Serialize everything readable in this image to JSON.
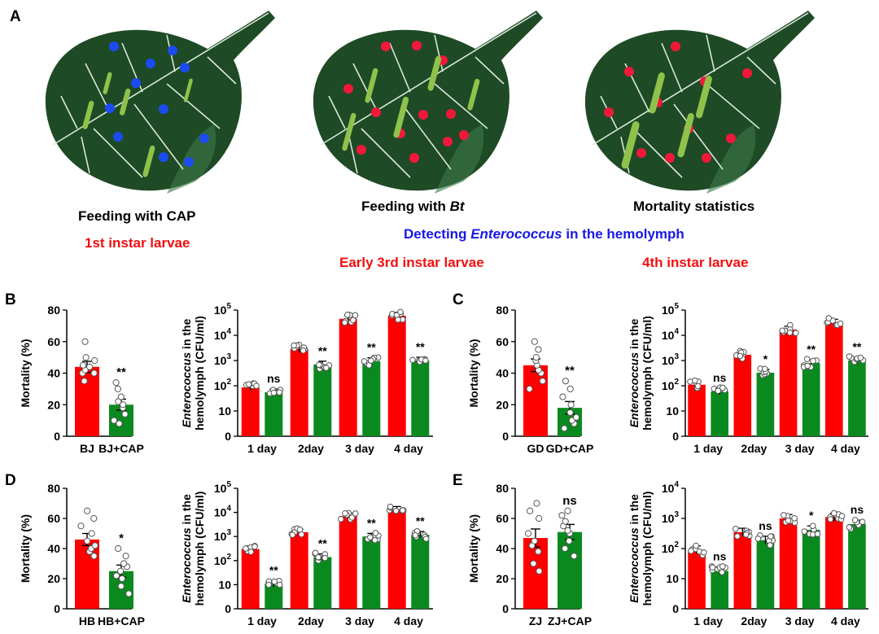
{
  "panel_labels": {
    "a": "A",
    "b": "B",
    "c": "C",
    "d": "D",
    "e": "E"
  },
  "schematic": {
    "step1": "Feeding with CAP",
    "step1_stage": "1st instar larvae",
    "step2_prefix": "Feeding with ",
    "step2_agent": "Bt",
    "step3": "Mortality statistics",
    "detect_prefix": "Detecting ",
    "detect_organism": "Enterococcus",
    "detect_suffix": " in the hemolymph",
    "step2_stage": "Early 3rd instar larvae",
    "step3_stage": "4th instar larvae",
    "dot_colors": {
      "cap": "#1a4cf2",
      "bt": "#f2183a"
    },
    "leaf_color": "#1e4a26",
    "larva_color": "#8fc24a"
  },
  "colors": {
    "control": "#ff0000",
    "cap": "#0a8a1e"
  },
  "chart_data": [
    {
      "panel": "B",
      "type": "bar",
      "ylabel": "Mortality (%)",
      "ylim": [
        0,
        80
      ],
      "yticks": [
        0,
        20,
        40,
        60,
        80
      ],
      "categories": [
        "BJ",
        "BJ+CAP"
      ],
      "values": [
        44,
        20
      ],
      "errors": [
        3.5,
        3.5
      ],
      "points": [
        [
          35,
          40,
          40,
          42,
          44,
          45,
          48,
          50,
          60
        ],
        [
          8,
          10,
          14,
          18,
          20,
          22,
          25,
          30,
          34
        ]
      ],
      "significance": "**"
    },
    {
      "panel": "B",
      "type": "bar",
      "scale": "log",
      "ylabel_italic": "Enterococcus",
      "ylabel_rest": " in the",
      "ylabel2": "hemolymph (CFU/ml)",
      "ylim_exp": [
        0,
        5
      ],
      "ytick_labels": [
        "0",
        "10",
        "10",
        "10",
        "10",
        "10"
      ],
      "ytick_exps": [
        "",
        "",
        "2",
        "3",
        "4",
        "5"
      ],
      "categories": [
        "1 day",
        "2day",
        "3 day",
        "4 day"
      ],
      "series": [
        {
          "name": "control",
          "values": [
            85,
            2900,
            45000,
            60000
          ]
        },
        {
          "name": "CAP",
          "values": [
            55,
            700,
            950,
            1000
          ]
        }
      ],
      "significance": [
        "ns",
        "**",
        "**",
        "**"
      ]
    },
    {
      "panel": "C",
      "type": "bar",
      "ylabel": "Mortality (%)",
      "ylim": [
        0,
        80
      ],
      "yticks": [
        0,
        20,
        40,
        60,
        80
      ],
      "categories": [
        "GD",
        "GD+CAP"
      ],
      "values": [
        45,
        18
      ],
      "errors": [
        4,
        4
      ],
      "points": [
        [
          30,
          35,
          40,
          42,
          45,
          48,
          50,
          55,
          60
        ],
        [
          5,
          8,
          10,
          12,
          15,
          20,
          25,
          30,
          35
        ]
      ],
      "significance": "**"
    },
    {
      "panel": "C",
      "type": "bar",
      "scale": "log",
      "ylabel_italic": "Enterococcus",
      "ylabel_rest": " in the",
      "ylabel2": "hemolymph (CFU/ml)",
      "ylim_exp": [
        0,
        5
      ],
      "ytick_labels": [
        "0",
        "10",
        "10",
        "10",
        "10",
        "10"
      ],
      "ytick_exps": [
        "",
        "",
        "2",
        "3",
        "4",
        "5"
      ],
      "categories": [
        "1 day",
        "2day",
        "3 day",
        "4 day"
      ],
      "series": [
        {
          "name": "control",
          "values": [
            110,
            1700,
            17000,
            32000
          ]
        },
        {
          "name": "CAP",
          "values": [
            60,
            330,
            800,
            1000
          ]
        }
      ],
      "significance": [
        "ns",
        "*",
        "**",
        "**"
      ]
    },
    {
      "panel": "D",
      "type": "bar",
      "ylabel": "Mortality (%)",
      "ylim": [
        0,
        80
      ],
      "yticks": [
        0,
        20,
        40,
        60,
        80
      ],
      "categories": [
        "HB",
        "HB+CAP"
      ],
      "values": [
        46,
        25
      ],
      "errors": [
        4,
        4
      ],
      "points": [
        [
          35,
          38,
          40,
          42,
          45,
          50,
          55,
          60,
          65
        ],
        [
          10,
          15,
          20,
          22,
          25,
          28,
          30,
          35,
          40
        ]
      ],
      "significance": "*"
    },
    {
      "panel": "D",
      "type": "bar",
      "scale": "log",
      "ylabel_italic": "Enterococcus",
      "ylabel_rest": " in the",
      "ylabel2": "hemolymph (CFU/ml)",
      "ylim_exp": [
        0,
        5
      ],
      "ytick_labels": [
        "0",
        "10",
        "10",
        "10",
        "10",
        "10"
      ],
      "ytick_exps": [
        "",
        "",
        "2",
        "3",
        "4",
        "5"
      ],
      "categories": [
        "1 day",
        "2day",
        "3 day",
        "4 day"
      ],
      "series": [
        {
          "name": "control",
          "values": [
            300,
            1500,
            7000,
            13000
          ]
        },
        {
          "name": "CAP",
          "values": [
            11,
            140,
            1000,
            1200
          ]
        }
      ],
      "significance": [
        "**",
        "**",
        "**",
        "**"
      ]
    },
    {
      "panel": "E",
      "type": "bar",
      "ylabel": "Mortality (%)",
      "ylim": [
        0,
        80
      ],
      "yticks": [
        0,
        20,
        40,
        60,
        80
      ],
      "categories": [
        "ZJ",
        "ZJ+CAP"
      ],
      "values": [
        47,
        51
      ],
      "errors": [
        6,
        5
      ],
      "points": [
        [
          25,
          30,
          38,
          42,
          45,
          50,
          60,
          65,
          70
        ],
        [
          35,
          40,
          45,
          50,
          52,
          55,
          58,
          62,
          65
        ]
      ],
      "significance": "ns"
    },
    {
      "panel": "E",
      "type": "bar",
      "scale": "log",
      "ylabel_italic": "Enterococcus",
      "ylabel_rest": " in the",
      "ylabel2": "hemolymph (CFU/ml)",
      "ylim_exp": [
        0,
        4
      ],
      "ytick_labels": [
        "0",
        "10",
        "10",
        "10",
        "10"
      ],
      "ytick_exps": [
        "",
        "",
        "2",
        "3",
        "4"
      ],
      "categories": [
        "1 day",
        "2day",
        "3 day",
        "4 day"
      ],
      "series": [
        {
          "name": "control",
          "values": [
            90,
            350,
            1000,
            1100
          ]
        },
        {
          "name": "CAP",
          "values": [
            18,
            190,
            420,
            650
          ]
        }
      ],
      "significance": [
        "ns",
        "ns",
        "*",
        "ns"
      ]
    }
  ]
}
